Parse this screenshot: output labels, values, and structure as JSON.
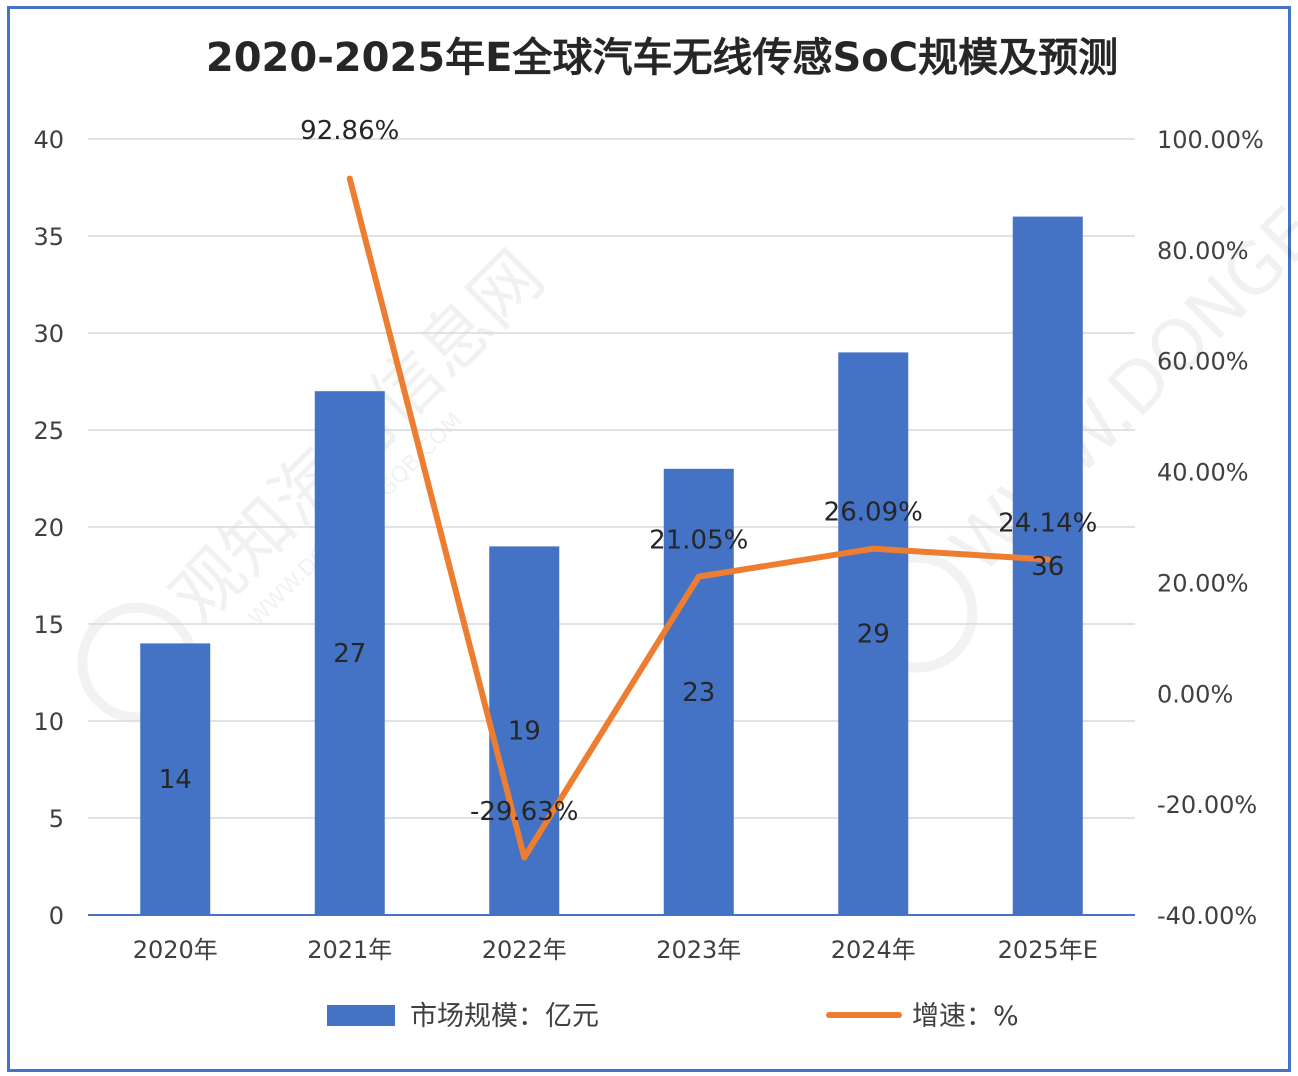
{
  "chart_data": {
    "type": "bar",
    "title": "2020-2025年E全球汽车无线传感SoC规模及预测",
    "categories": [
      "2020年",
      "2021年",
      "2022年",
      "2023年",
      "2024年",
      "2025年E"
    ],
    "series": [
      {
        "name": "市场规模：亿元",
        "type": "bar",
        "axis": "left",
        "values": [
          14,
          27,
          19,
          23,
          29,
          36
        ],
        "labels": [
          "14",
          "27",
          "19",
          "23",
          "29",
          "36"
        ],
        "color": "#4472C4"
      },
      {
        "name": "增速：%",
        "type": "line",
        "axis": "right",
        "values": [
          null,
          92.86,
          -29.63,
          21.05,
          26.09,
          24.14
        ],
        "labels": [
          "",
          "92.86%",
          "-29.63%",
          "21.05%",
          "26.09%",
          "24.14%"
        ],
        "color": "#ED7D31"
      }
    ],
    "y_left": {
      "min": 0,
      "max": 40,
      "ticks": [
        "0",
        "5",
        "10",
        "15",
        "20",
        "25",
        "30",
        "35",
        "40"
      ],
      "tick_values": [
        0,
        5,
        10,
        15,
        20,
        25,
        30,
        35,
        40
      ]
    },
    "y_right": {
      "min": -40,
      "max": 100,
      "ticks": [
        "-40.00%",
        "-20.00%",
        "0.00%",
        "20.00%",
        "40.00%",
        "60.00%",
        "80.00%",
        "100.00%"
      ],
      "tick_values": [
        -40,
        -20,
        0,
        20,
        40,
        60,
        80,
        100
      ]
    },
    "grid": true,
    "legend_position": "bottom"
  },
  "watermark": {
    "text": "观知海内信息网",
    "url": "WWW.DONGEANGQB.COM"
  },
  "colors": {
    "frame": "#4472C4",
    "bar": "#4472C4",
    "line": "#ED7D31",
    "grid": "#D9D9D9"
  }
}
